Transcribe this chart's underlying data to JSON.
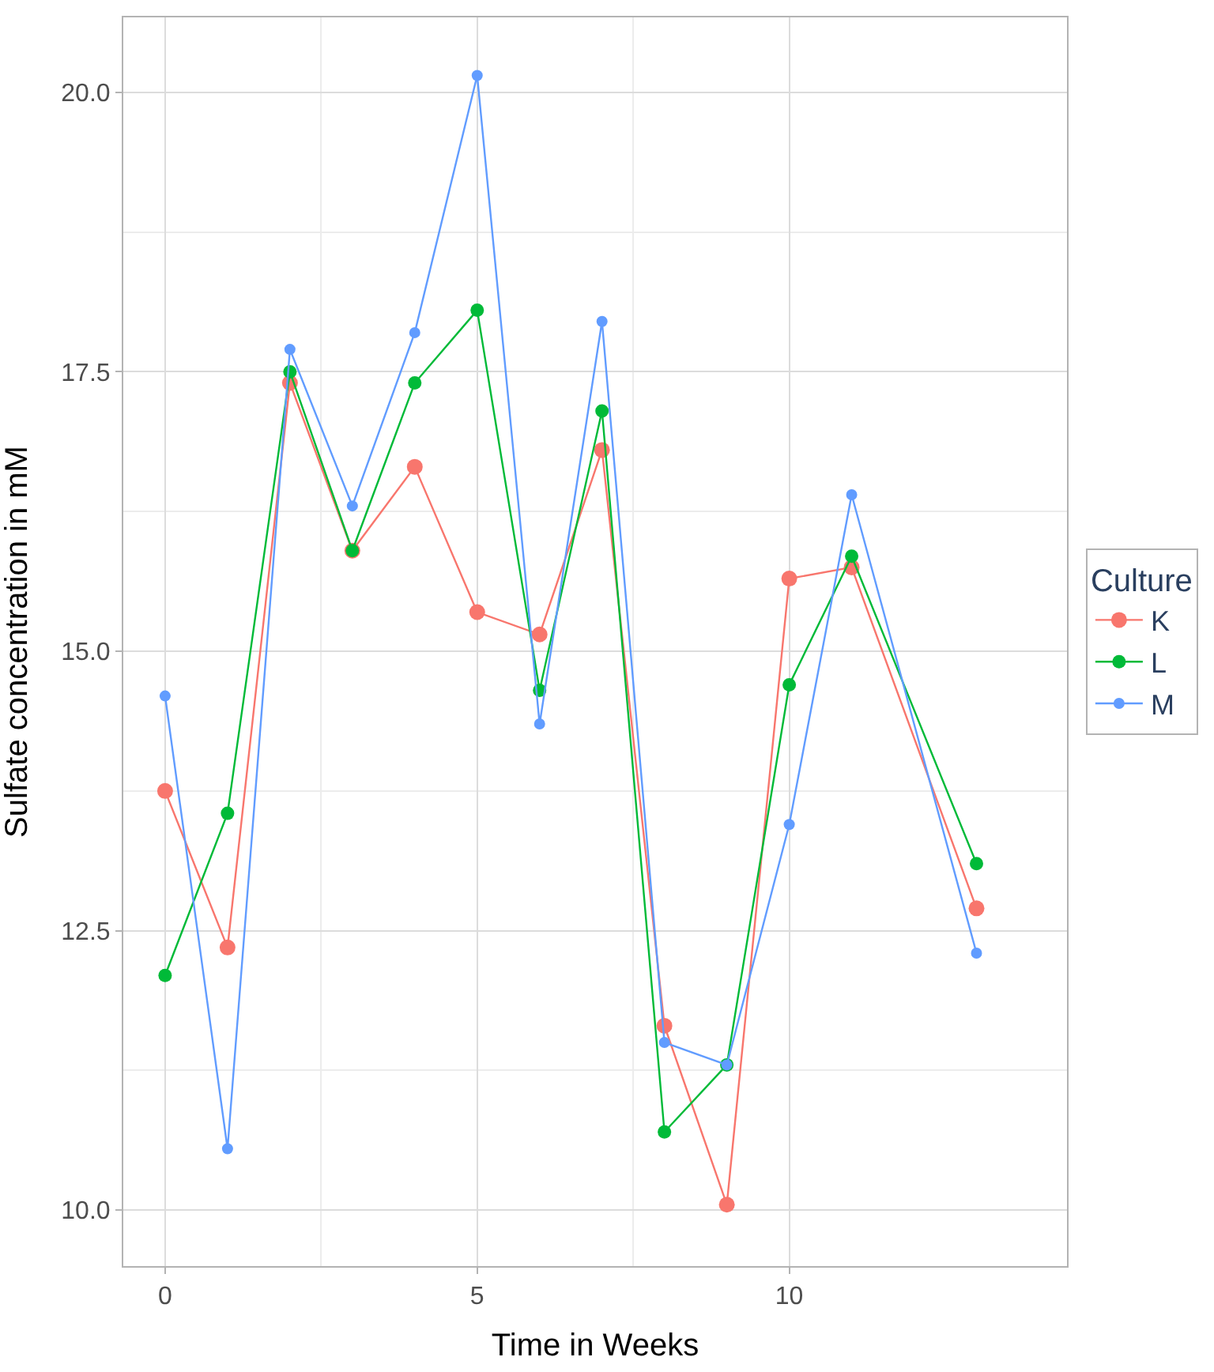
{
  "chart_data": {
    "type": "line",
    "xlabel": "Time in Weeks",
    "ylabel": "Sulfate concentration in mM",
    "legend_title": "Culture",
    "x": [
      0,
      1,
      2,
      3,
      4,
      5,
      6,
      7,
      8,
      9,
      10,
      11,
      13
    ],
    "series": [
      {
        "name": "K",
        "color": "#f8766d",
        "values": [
          13.75,
          12.35,
          17.4,
          15.9,
          16.65,
          15.35,
          15.15,
          16.8,
          11.65,
          10.05,
          15.65,
          15.75,
          12.7
        ]
      },
      {
        "name": "L",
        "color": "#00ba38",
        "values": [
          12.1,
          13.55,
          17.5,
          15.9,
          17.4,
          18.05,
          14.65,
          17.15,
          10.7,
          11.3,
          14.7,
          15.85,
          13.1
        ]
      },
      {
        "name": "M",
        "color": "#619cff",
        "values": [
          14.6,
          10.55,
          17.7,
          16.3,
          17.85,
          20.15,
          14.35,
          17.95,
          11.5,
          11.3,
          13.45,
          16.4,
          12.3
        ]
      }
    ],
    "xlim": [
      -0.67,
      14.45
    ],
    "ylim": [
      9.5,
      20.67
    ],
    "xticks": [
      0,
      5,
      10
    ],
    "yticks": [
      {
        "value": 10,
        "label": "10.0"
      },
      {
        "value": 12.5,
        "label": "12.5"
      },
      {
        "value": 15,
        "label": "15.0"
      },
      {
        "value": 17.5,
        "label": "17.5"
      },
      {
        "value": 20,
        "label": "20.0"
      }
    ],
    "grid": true,
    "legend": "right",
    "marker": "circle",
    "line_style": "solid"
  }
}
